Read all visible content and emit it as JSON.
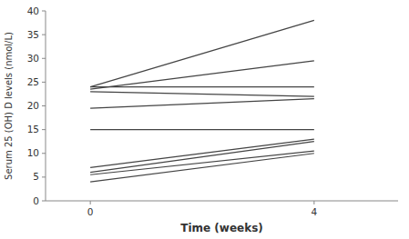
{
  "chart_data": {
    "type": "line",
    "x": [
      0,
      4
    ],
    "series": [
      {
        "values": [
          24,
          38
        ]
      },
      {
        "values": [
          23.5,
          29.5
        ]
      },
      {
        "values": [
          24,
          24
        ]
      },
      {
        "values": [
          23,
          22
        ]
      },
      {
        "values": [
          19.5,
          21.5
        ]
      },
      {
        "values": [
          15,
          15
        ]
      },
      {
        "values": [
          7,
          13
        ]
      },
      {
        "values": [
          6,
          12.5
        ]
      },
      {
        "values": [
          5.5,
          10.5
        ]
      },
      {
        "values": [
          4,
          10
        ]
      }
    ],
    "color": "#444444",
    "xlim": [
      -0.8,
      5.5
    ],
    "ylim": [
      0,
      40
    ],
    "xticks": [
      0,
      4
    ],
    "yticks": [
      0,
      5,
      10,
      15,
      20,
      25,
      30,
      35,
      40
    ],
    "xlabel": "Time (weeks)",
    "ylabel": "Serum 25 (OH) D levels (nmol/L)",
    "grid": false
  }
}
